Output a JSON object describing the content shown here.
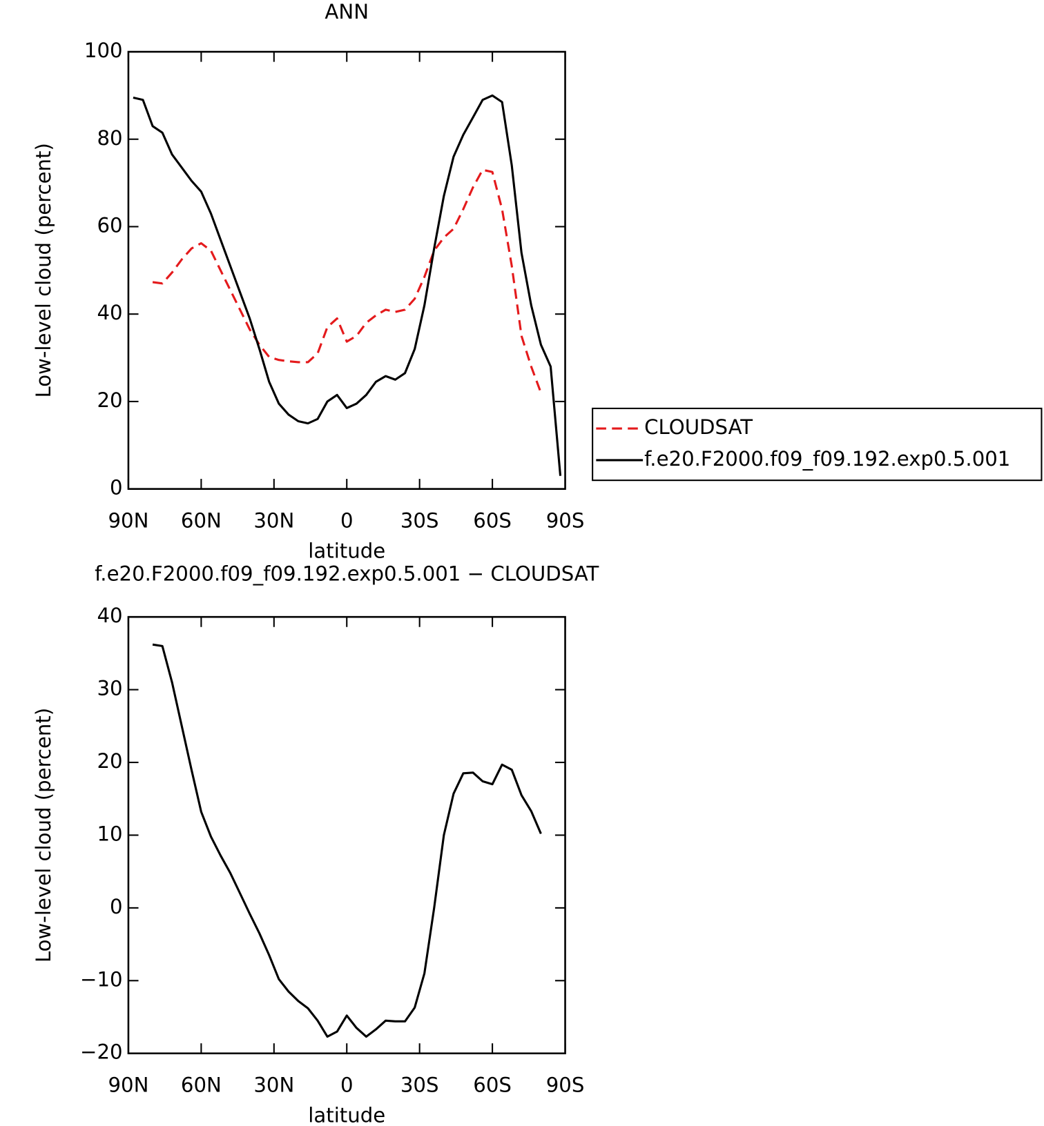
{
  "chart_data": [
    {
      "type": "line",
      "title": "ANN",
      "xlabel": "latitude",
      "ylabel": "Low-level cloud (percent)",
      "x": [
        88,
        84,
        80,
        76,
        72,
        68,
        64,
        60,
        56,
        52,
        48,
        44,
        40,
        36,
        32,
        28,
        24,
        20,
        16,
        12,
        8,
        4,
        0,
        -4,
        -8,
        -12,
        -16,
        -20,
        -24,
        -28,
        -32,
        -36,
        -40,
        -44,
        -48,
        -52,
        -56,
        -60,
        -64,
        -68,
        -72,
        -76,
        -80,
        -84,
        -88
      ],
      "xlim": [
        90,
        -90
      ],
      "xticks": [
        {
          "value": 90,
          "label": "90N"
        },
        {
          "value": 60,
          "label": "60N"
        },
        {
          "value": 30,
          "label": "30N"
        },
        0,
        {
          "value": -30,
          "label": "30S"
        },
        {
          "value": -60,
          "label": "60S"
        },
        {
          "value": -90,
          "label": "90S"
        }
      ],
      "ylim": [
        0,
        100
      ],
      "yticks": [
        0,
        20,
        40,
        60,
        80,
        100
      ],
      "legend": "outside-right",
      "series": [
        {
          "name": "CLOUDSAT",
          "color": "#e41a1c",
          "dashed": true,
          "values": [
            null,
            null,
            47.3,
            47,
            49.5,
            52.5,
            55,
            56.2,
            54.5,
            50,
            45.5,
            41,
            36.5,
            33,
            30.2,
            29.5,
            29.2,
            29,
            29,
            31,
            37,
            39,
            33.7,
            35,
            38,
            39.7,
            41,
            40.5,
            41,
            43.5,
            48.5,
            54.5,
            57.5,
            59.5,
            64,
            69,
            73,
            72.5,
            64,
            51,
            35,
            28,
            22,
            null,
            null
          ]
        },
        {
          "name": "f.e20.F2000.f09_f09.192.exp0.5.001",
          "color": "#000000",
          "dashed": false,
          "values": [
            89.5,
            89,
            83,
            81.5,
            76.5,
            73.5,
            70.5,
            68,
            63,
            57,
            51,
            45,
            39,
            32,
            24.5,
            19.5,
            17,
            15.5,
            15,
            16,
            20,
            21.5,
            18.5,
            19.5,
            21.5,
            24.5,
            25.8,
            25,
            26.5,
            32,
            42,
            55,
            67,
            76,
            81,
            85,
            89,
            90,
            88.5,
            74,
            54,
            42,
            33,
            28,
            3
          ]
        }
      ]
    },
    {
      "type": "line",
      "title": "f.e20.F2000.f09_f09.192.exp0.5.001 − CLOUDSAT",
      "xlabel": "latitude",
      "ylabel": "Low-level cloud (percent)",
      "x": [
        80,
        76,
        72,
        68,
        64,
        60,
        56,
        52,
        48,
        44,
        40,
        36,
        32,
        28,
        24,
        20,
        16,
        12,
        8,
        4,
        0,
        -4,
        -8,
        -12,
        -16,
        -20,
        -24,
        -28,
        -32,
        -36,
        -40,
        -44,
        -48,
        -52,
        -56,
        -60,
        -64,
        -68,
        -72,
        -76,
        -80
      ],
      "xlim": [
        90,
        -90
      ],
      "xticks": [
        {
          "value": 90,
          "label": "90N"
        },
        {
          "value": 60,
          "label": "60N"
        },
        {
          "value": 30,
          "label": "30N"
        },
        0,
        {
          "value": -30,
          "label": "30S"
        },
        {
          "value": -60,
          "label": "60S"
        },
        {
          "value": -90,
          "label": "90S"
        }
      ],
      "ylim": [
        -20,
        40
      ],
      "yticks": [
        {
          "value": -20,
          "label": "−20"
        },
        {
          "value": -10,
          "label": "−10"
        },
        0,
        10,
        20,
        30,
        40
      ],
      "series": [
        {
          "color": "#000000",
          "dashed": false,
          "values": [
            36.2,
            36,
            31,
            25,
            19,
            13.2,
            9.8,
            7.2,
            4.8,
            2,
            -0.8,
            -3.5,
            -6.5,
            -9.8,
            -11.5,
            -12.8,
            -13.8,
            -15.5,
            -17.7,
            -17,
            -14.8,
            -16.5,
            -17.7,
            -16.7,
            -15.5,
            -15.6,
            -15.6,
            -13.7,
            -9,
            0,
            10,
            15.7,
            18.5,
            18.6,
            17.4,
            17,
            19.7,
            19,
            15.5,
            13.3,
            10.2
          ]
        }
      ]
    }
  ]
}
